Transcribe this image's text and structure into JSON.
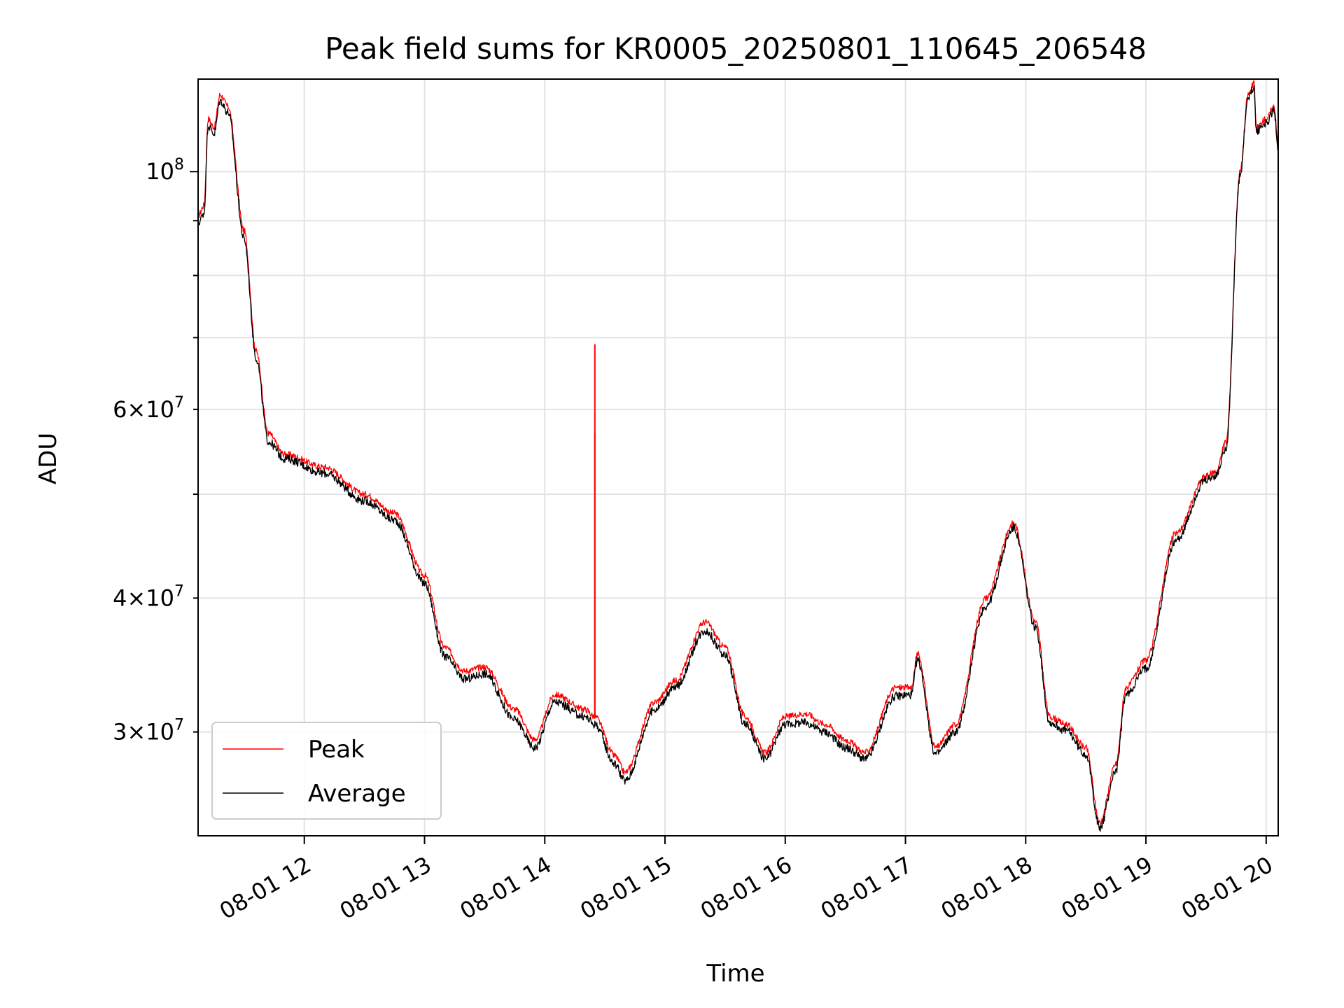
{
  "chart_data": {
    "type": "line",
    "title": "Peak field sums for KR0005_20250801_110645_206548",
    "xlabel": "Time",
    "ylabel": "ADU",
    "yscale": "log",
    "grid": true,
    "legend_position": "lower-left",
    "xlim": [
      "2025-08-01 11:07",
      "2025-08-01 20:06"
    ],
    "ylim": [
      24000000,
      122000000
    ],
    "x_ticks": [
      "08-01 12",
      "08-01 13",
      "08-01 14",
      "08-01 15",
      "08-01 16",
      "08-01 17",
      "08-01 18",
      "08-01 19",
      "08-01 20"
    ],
    "y_tick_labels": [
      {
        "value": 30000000,
        "mantissa": "3",
        "exponent": "7"
      },
      {
        "value": 40000000,
        "mantissa": "4",
        "exponent": "7"
      },
      {
        "value": 60000000,
        "mantissa": "6",
        "exponent": "7"
      },
      {
        "value": 100000000,
        "mantissa": "",
        "exponent": "8"
      }
    ],
    "y_minor_ticks": [
      50000000,
      70000000,
      80000000,
      90000000
    ],
    "series": [
      {
        "name": "Peak",
        "color": "#ff0000",
        "noise": 0.006,
        "points": [
          [
            "2025-08-01 11:07",
            91000000
          ],
          [
            "2025-08-01 11:10",
            93000000
          ],
          [
            "2025-08-01 11:12",
            112000000
          ],
          [
            "2025-08-01 11:15",
            110000000
          ],
          [
            "2025-08-01 11:18",
            118000000
          ],
          [
            "2025-08-01 11:22",
            115000000
          ],
          [
            "2025-08-01 11:30",
            88000000
          ],
          [
            "2025-08-01 11:36",
            68000000
          ],
          [
            "2025-08-01 11:42",
            57000000
          ],
          [
            "2025-08-01 11:50",
            54500000
          ],
          [
            "2025-08-01 12:10",
            53000000
          ],
          [
            "2025-08-01 12:30",
            50000000
          ],
          [
            "2025-08-01 12:45",
            48000000
          ],
          [
            "2025-08-01 13:00",
            42000000
          ],
          [
            "2025-08-01 13:10",
            36000000
          ],
          [
            "2025-08-01 13:20",
            34200000
          ],
          [
            "2025-08-01 13:30",
            34500000
          ],
          [
            "2025-08-01 13:45",
            31500000
          ],
          [
            "2025-08-01 13:55",
            29500000
          ],
          [
            "2025-08-01 14:05",
            32500000
          ],
          [
            "2025-08-01 14:20",
            31500000
          ],
          [
            "2025-08-01 14:25",
            31000000
          ],
          [
            "2025-08-01 14:35",
            28500000
          ],
          [
            "2025-08-01 14:40",
            27500000
          ],
          [
            "2025-08-01 14:55",
            32000000
          ],
          [
            "2025-08-01 15:05",
            33500000
          ],
          [
            "2025-08-01 15:20",
            38000000
          ],
          [
            "2025-08-01 15:30",
            36000000
          ],
          [
            "2025-08-01 15:40",
            31000000
          ],
          [
            "2025-08-01 15:50",
            28700000
          ],
          [
            "2025-08-01 16:00",
            31000000
          ],
          [
            "2025-08-01 16:10",
            31200000
          ],
          [
            "2025-08-01 16:20",
            30500000
          ],
          [
            "2025-08-01 16:30",
            29500000
          ],
          [
            "2025-08-01 16:40",
            28700000
          ],
          [
            "2025-08-01 16:55",
            33000000
          ],
          [
            "2025-08-01 17:03",
            33000000
          ],
          [
            "2025-08-01 17:06",
            35500000
          ],
          [
            "2025-08-01 17:15",
            29000000
          ],
          [
            "2025-08-01 17:25",
            30500000
          ],
          [
            "2025-08-01 17:40",
            40000000
          ],
          [
            "2025-08-01 17:54",
            47000000
          ],
          [
            "2025-08-01 18:05",
            38000000
          ],
          [
            "2025-08-01 18:12",
            31000000
          ],
          [
            "2025-08-01 18:20",
            30500000
          ],
          [
            "2025-08-01 18:30",
            29000000
          ],
          [
            "2025-08-01 18:37",
            24700000
          ],
          [
            "2025-08-01 18:45",
            28000000
          ],
          [
            "2025-08-01 18:50",
            33000000
          ],
          [
            "2025-08-01 19:00",
            35000000
          ],
          [
            "2025-08-01 19:15",
            46000000
          ],
          [
            "2025-08-01 19:30",
            52000000
          ],
          [
            "2025-08-01 19:35",
            52500000
          ],
          [
            "2025-08-01 19:40",
            56000000
          ],
          [
            "2025-08-01 19:47",
            100000000
          ],
          [
            "2025-08-01 19:51",
            118000000
          ],
          [
            "2025-08-01 19:54",
            121000000
          ],
          [
            "2025-08-01 19:55",
            110000000
          ],
          [
            "2025-08-01 20:00",
            112000000
          ],
          [
            "2025-08-01 20:04",
            115000000
          ],
          [
            "2025-08-01 20:06",
            106000000
          ]
        ]
      },
      {
        "name": "Average",
        "color": "#000000",
        "noise": 0.008,
        "points": [
          [
            "2025-08-01 11:07",
            89500000
          ],
          [
            "2025-08-01 11:10",
            91500000
          ],
          [
            "2025-08-01 11:12",
            110500000
          ],
          [
            "2025-08-01 11:15",
            108500000
          ],
          [
            "2025-08-01 11:18",
            116500000
          ],
          [
            "2025-08-01 11:22",
            113500000
          ],
          [
            "2025-08-01 11:30",
            86500000
          ],
          [
            "2025-08-01 11:36",
            67000000
          ],
          [
            "2025-08-01 11:42",
            56000000
          ],
          [
            "2025-08-01 11:50",
            54000000
          ],
          [
            "2025-08-01 12:10",
            52300000
          ],
          [
            "2025-08-01 12:30",
            49300000
          ],
          [
            "2025-08-01 12:45",
            47300000
          ],
          [
            "2025-08-01 13:00",
            41300000
          ],
          [
            "2025-08-01 13:10",
            35300000
          ],
          [
            "2025-08-01 13:20",
            33600000
          ],
          [
            "2025-08-01 13:30",
            34000000
          ],
          [
            "2025-08-01 13:45",
            30800000
          ],
          [
            "2025-08-01 13:55",
            29000000
          ],
          [
            "2025-08-01 14:05",
            32000000
          ],
          [
            "2025-08-01 14:20",
            31000000
          ],
          [
            "2025-08-01 14:25",
            30500000
          ],
          [
            "2025-08-01 14:35",
            28000000
          ],
          [
            "2025-08-01 14:40",
            27000000
          ],
          [
            "2025-08-01 14:55",
            31500000
          ],
          [
            "2025-08-01 15:05",
            33000000
          ],
          [
            "2025-08-01 15:20",
            37300000
          ],
          [
            "2025-08-01 15:30",
            35400000
          ],
          [
            "2025-08-01 15:40",
            30500000
          ],
          [
            "2025-08-01 15:50",
            28300000
          ],
          [
            "2025-08-01 16:00",
            30500000
          ],
          [
            "2025-08-01 16:10",
            30600000
          ],
          [
            "2025-08-01 16:20",
            30000000
          ],
          [
            "2025-08-01 16:30",
            29000000
          ],
          [
            "2025-08-01 16:40",
            28300000
          ],
          [
            "2025-08-01 16:55",
            32400000
          ],
          [
            "2025-08-01 17:03",
            32500000
          ],
          [
            "2025-08-01 17:06",
            35000000
          ],
          [
            "2025-08-01 17:15",
            28600000
          ],
          [
            "2025-08-01 17:25",
            30000000
          ],
          [
            "2025-08-01 17:40",
            39300000
          ],
          [
            "2025-08-01 17:54",
            46500000
          ],
          [
            "2025-08-01 18:05",
            37500000
          ],
          [
            "2025-08-01 18:12",
            30600000
          ],
          [
            "2025-08-01 18:20",
            30100000
          ],
          [
            "2025-08-01 18:30",
            28600000
          ],
          [
            "2025-08-01 18:37",
            24400000
          ],
          [
            "2025-08-01 18:45",
            27600000
          ],
          [
            "2025-08-01 18:50",
            32500000
          ],
          [
            "2025-08-01 19:00",
            34400000
          ],
          [
            "2025-08-01 19:15",
            45300000
          ],
          [
            "2025-08-01 19:30",
            51500000
          ],
          [
            "2025-08-01 19:35",
            52000000
          ],
          [
            "2025-08-01 19:40",
            55300000
          ],
          [
            "2025-08-01 19:47",
            99000000
          ],
          [
            "2025-08-01 19:51",
            117000000
          ],
          [
            "2025-08-01 19:54",
            120000000
          ],
          [
            "2025-08-01 19:55",
            109000000
          ],
          [
            "2025-08-01 20:00",
            111000000
          ],
          [
            "2025-08-01 20:04",
            114000000
          ],
          [
            "2025-08-01 20:06",
            105000000
          ]
        ]
      }
    ],
    "annotations": [
      {
        "series": "Peak",
        "type": "spike",
        "x": "2025-08-01 14:25",
        "from": 31000000,
        "to": 69000000
      },
      {
        "series": "Peak",
        "type": "spike",
        "x": "2025-08-01 14:25",
        "from": 31000000,
        "to": 57000000
      }
    ]
  }
}
